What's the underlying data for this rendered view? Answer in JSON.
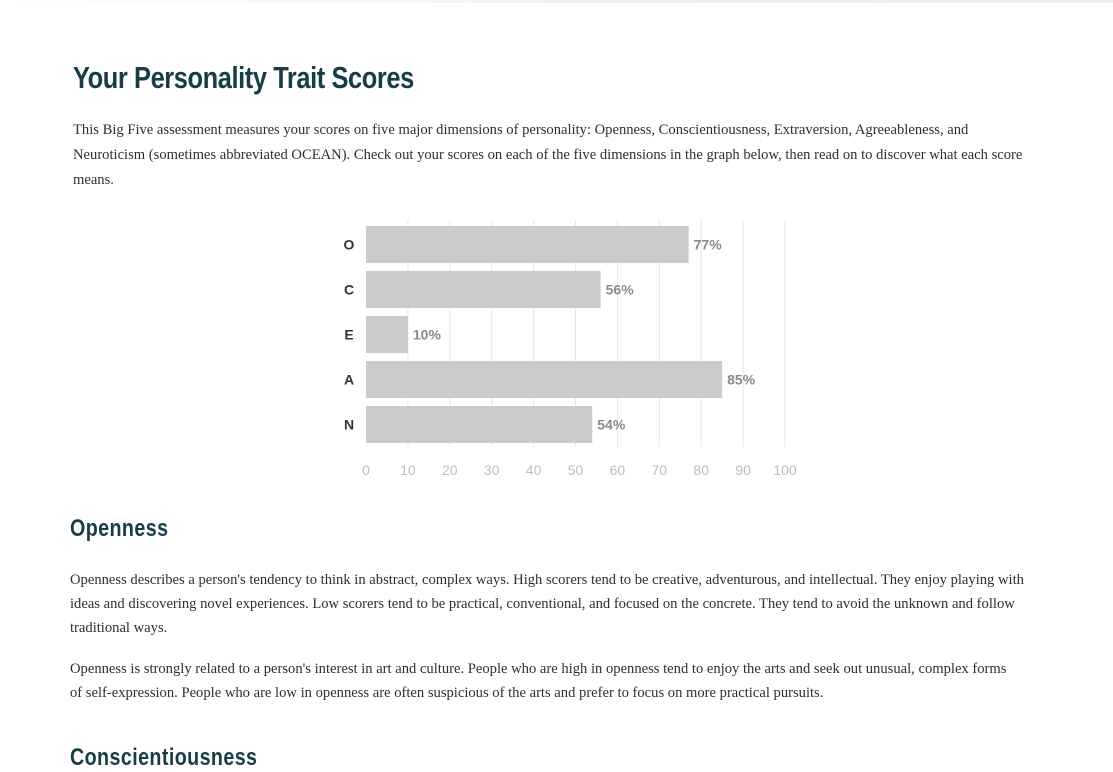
{
  "page": {
    "title": "Your Personality Trait Scores",
    "intro": "This Big Five assessment measures your scores on five major dimensions of personality: Openness, Conscientiousness, Extraversion, Agreeableness, and Neuroticism (sometimes abbreviated OCEAN). Check out your scores on each of the five dimensions in the graph below, then read on to discover what each score means."
  },
  "sections": {
    "openness": {
      "heading": "Openness",
      "p1": "Openness describes a person's tendency to think in abstract, complex ways. High scorers tend to be creative, adventurous, and intellectual. They enjoy playing with ideas and discovering novel experiences. Low scorers tend to be practical, conventional, and focused on the concrete. They tend to avoid the unknown and follow traditional ways.",
      "p2": "Openness is strongly related to a person's interest in art and culture. People who are high in openness tend to enjoy the arts and seek out unusual, complex forms of self-expression. People who are low in openness are often suspicious of the arts and prefer to focus on more practical pursuits."
    },
    "conscientiousness": {
      "heading": "Conscientiousness"
    }
  },
  "colors": {
    "heading": "#173d47",
    "bar": "#cbcbcb",
    "value_label": "#8a8a8a",
    "tick_label": "#bdbdbd"
  },
  "chart_data": {
    "type": "bar",
    "orientation": "horizontal",
    "title": "",
    "xlabel": "",
    "ylabel": "",
    "categories": [
      "O",
      "C",
      "E",
      "A",
      "N"
    ],
    "values": [
      77,
      56,
      10,
      85,
      54
    ],
    "value_labels": [
      "77%",
      "56%",
      "10%",
      "85%",
      "54%"
    ],
    "xlim": [
      0,
      100
    ],
    "x_ticks": [
      0,
      10,
      20,
      30,
      40,
      50,
      60,
      70,
      80,
      90,
      100
    ],
    "grid": true,
    "legend": "none"
  }
}
